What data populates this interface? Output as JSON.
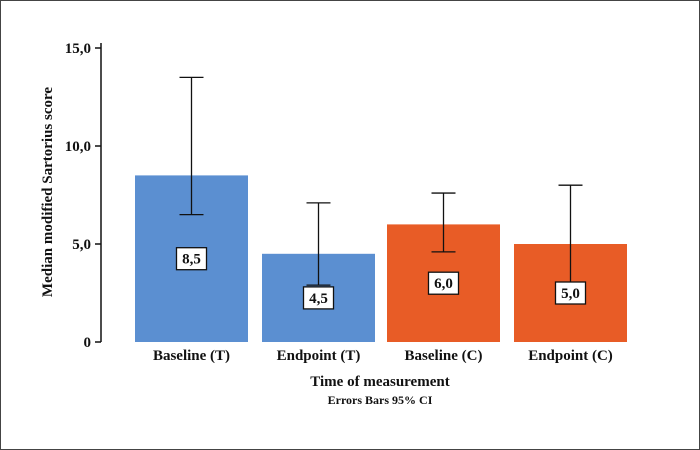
{
  "chart_data": {
    "type": "bar",
    "categories": [
      "Baseline (T)",
      "Endpoint (T)",
      "Baseline (C)",
      "Endpoint (C)"
    ],
    "values": [
      8.5,
      4.5,
      6.0,
      5.0
    ],
    "value_labels": [
      "8,5",
      "4,5",
      "6,0",
      "5,0"
    ],
    "ci_low": [
      6.5,
      2.9,
      4.6,
      3.0
    ],
    "ci_high": [
      13.5,
      7.1,
      7.6,
      8.0
    ],
    "bar_colors": [
      "#5b8fd1",
      "#5b8fd1",
      "#e85c26",
      "#e85c26"
    ],
    "xlabel": "Time of measurement",
    "ylabel": "Median modified Sartorius score",
    "note": "Errors Bars 95% CI",
    "ylim": [
      0,
      15
    ],
    "yticks": [
      {
        "value": 0,
        "label": "0"
      },
      {
        "value": 5,
        "label": "5,0"
      },
      {
        "value": 10,
        "label": "10,0"
      },
      {
        "value": 15,
        "label": "15,0"
      }
    ],
    "grid": false,
    "legend": "none"
  }
}
